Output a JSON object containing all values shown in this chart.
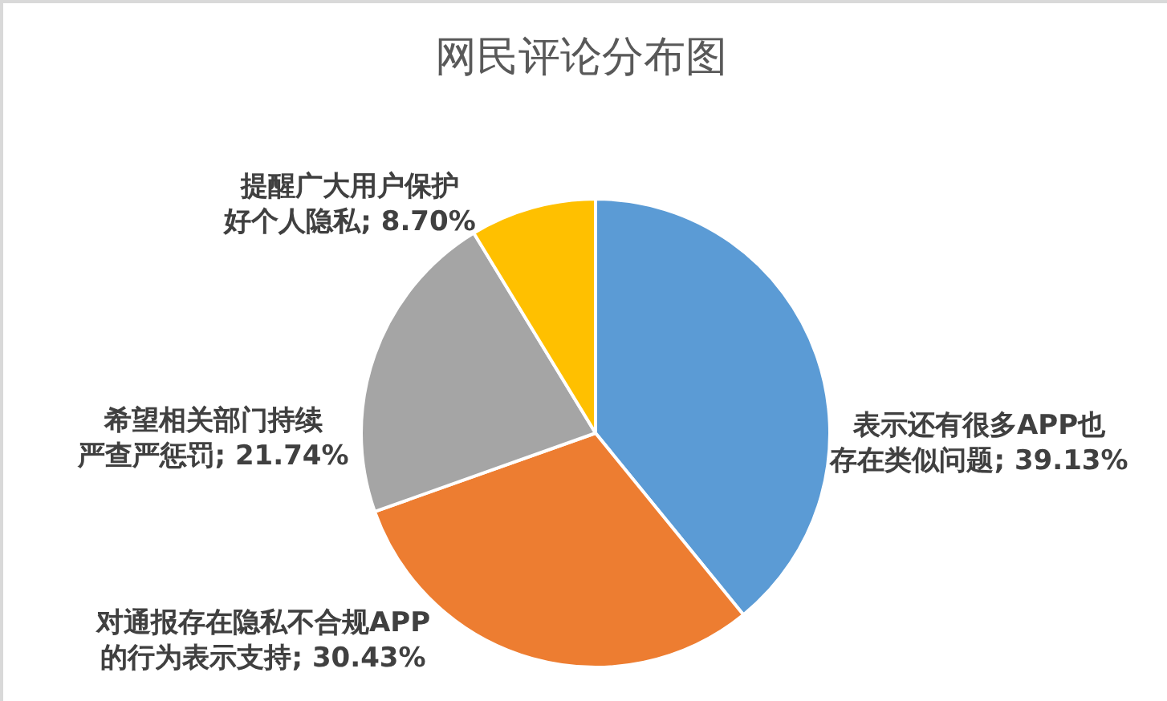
{
  "chart_data": {
    "type": "pie",
    "title": "网民评论分布图",
    "categories": [
      "表示还有很多APP也存在类似问题",
      "对通报存在隐私不合规APP的行为表示支持",
      "希望相关部门持续严查严惩罚",
      "提醒广大用户保护好个人隐私"
    ],
    "values": [
      39.13,
      30.43,
      21.74,
      8.7
    ],
    "value_labels": [
      "39.13%",
      "30.43%",
      "21.74%",
      "8.70%"
    ],
    "colors": [
      "#5b9bd5",
      "#ed7d31",
      "#a5a5a5",
      "#ffc000"
    ],
    "legend": false
  }
}
